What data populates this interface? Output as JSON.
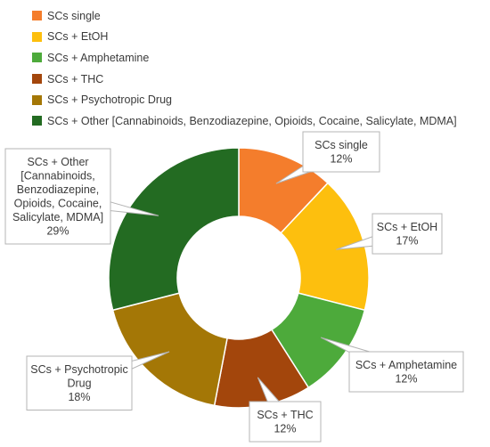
{
  "chart_data": {
    "type": "pie",
    "variant": "doughnut",
    "title": "",
    "legend_position": "top-left",
    "series": [
      {
        "name": "SCs single",
        "value": 12,
        "label_lines": [
          "SCs single",
          "12%"
        ],
        "color": "#F47D2C"
      },
      {
        "name": "SCs + EtOH",
        "value": 17,
        "label_lines": [
          "SCs + EtOH",
          "17%"
        ],
        "color": "#FDBF0E"
      },
      {
        "name": "SCs + Amphetamine",
        "value": 12,
        "label_lines": [
          "SCs + Amphetamine",
          "12%"
        ],
        "color": "#4DAA3B"
      },
      {
        "name": "SCs + THC",
        "value": 12,
        "label_lines": [
          "SCs + THC",
          "12%"
        ],
        "color": "#A3460C"
      },
      {
        "name": "SCs + Psychotropic Drug",
        "value": 18,
        "label_lines": [
          "SCs + Psychotropic",
          "Drug",
          "18%"
        ],
        "color": "#A47706"
      },
      {
        "name": "SCs + Other [Cannabinoids, Benzodiazepine, Opioids, Cocaine, Salicylate, MDMA]",
        "value": 29,
        "label_lines": [
          "SCs + Other",
          "[Cannabinoids,",
          "Benzodiazepine,",
          "Opioids, Cocaine,",
          "Salicylate, MDMA]",
          "29%"
        ],
        "color": "#236B22"
      }
    ]
  }
}
